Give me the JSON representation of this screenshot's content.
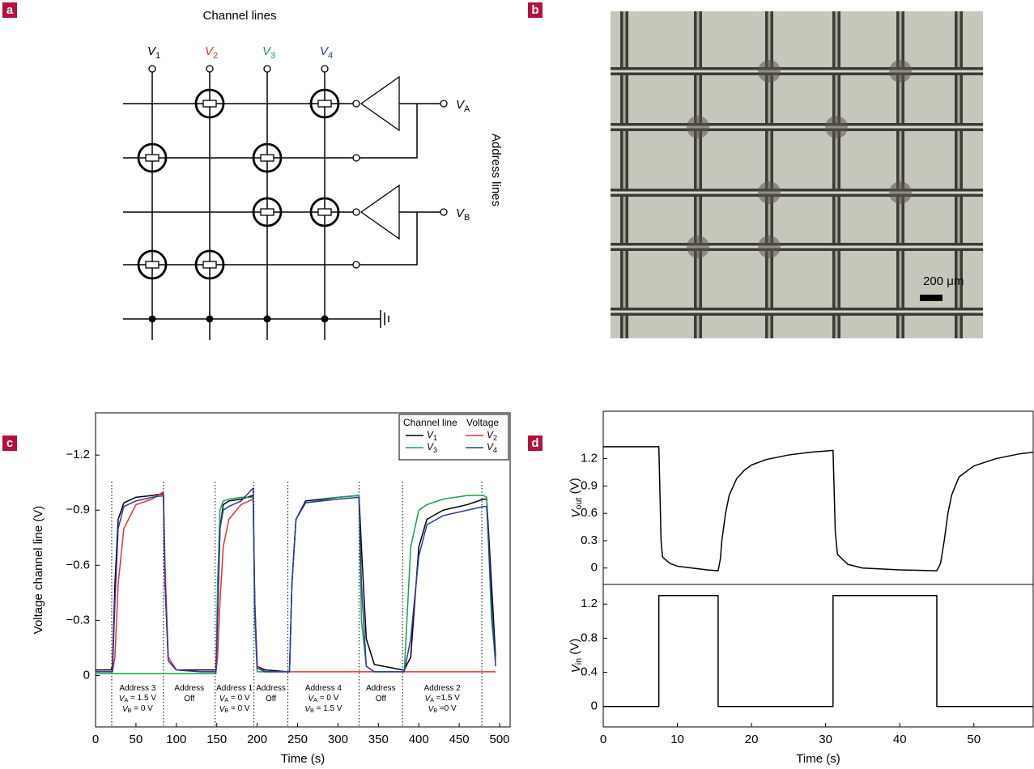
{
  "panel_labels": [
    "a",
    "b",
    "c",
    "d"
  ],
  "circuit": {
    "title": "Channel lines",
    "channels": [
      {
        "main": "V",
        "sub": "1",
        "color": "#000000"
      },
      {
        "main": "V",
        "sub": "2",
        "color": "#e8312f"
      },
      {
        "main": "V",
        "sub": "3",
        "color": "#1aa04a"
      },
      {
        "main": "V",
        "sub": "4",
        "color": "#2b3a9e"
      }
    ],
    "outputs": [
      {
        "main": "V",
        "sub": "A"
      },
      {
        "main": "V",
        "sub": "B"
      }
    ],
    "address_label": "Address lines"
  },
  "photo": {
    "scale_bar": "200 μm"
  },
  "chart_data": [
    {
      "type": "line",
      "xlabel": "Time (s)",
      "ylabel": "Voltage channel line (V)",
      "xlim": [
        0,
        513
      ],
      "ylim": [
        0.28,
        -1.43
      ],
      "xticks": [
        0,
        50,
        100,
        150,
        200,
        250,
        300,
        350,
        400,
        450,
        500
      ],
      "yticks": [
        0,
        {
          "value": -0.3,
          "label": "−0.3"
        },
        {
          "value": -0.6,
          "label": "−0.6"
        },
        {
          "value": -0.9,
          "label": "−0.9"
        },
        {
          "value": -1.2,
          "label": "−1.2"
        }
      ],
      "legend_title": [
        "Channel line",
        "Voltage"
      ],
      "x": [
        0,
        19,
        21,
        24,
        28,
        35,
        50,
        70,
        84,
        86,
        90,
        100,
        130,
        149,
        151,
        154,
        158,
        165,
        180,
        195,
        197,
        200,
        210,
        238,
        240,
        243,
        248,
        260,
        300,
        326,
        329,
        335,
        345,
        380,
        382,
        390,
        400,
        410,
        430,
        460,
        480,
        484,
        490,
        495
      ],
      "series": [
        {
          "name": "V",
          "subscript": "1",
          "color": "#000000",
          "values": [
            -0.03,
            -0.03,
            -0.05,
            -0.5,
            -0.85,
            -0.94,
            -0.97,
            -0.98,
            -0.99,
            -0.5,
            -0.08,
            -0.03,
            -0.03,
            -0.03,
            -0.3,
            -0.8,
            -0.93,
            -0.95,
            -0.96,
            -0.98,
            -0.4,
            -0.05,
            -0.03,
            -0.02,
            -0.02,
            -0.5,
            -0.85,
            -0.95,
            -0.97,
            -0.98,
            -0.7,
            -0.2,
            -0.06,
            -0.03,
            -0.03,
            -0.1,
            -0.7,
            -0.85,
            -0.9,
            -0.93,
            -0.96,
            -0.96,
            -0.5,
            -0.1
          ]
        },
        {
          "name": "V",
          "subscript": "2",
          "color": "#e8312f",
          "values": [
            -0.02,
            -0.02,
            -0.02,
            -0.1,
            -0.5,
            -0.8,
            -0.93,
            -0.96,
            -1.0,
            -0.6,
            -0.1,
            -0.03,
            -0.02,
            -0.02,
            -0.1,
            -0.4,
            -0.7,
            -0.85,
            -0.93,
            -0.96,
            -0.4,
            -0.05,
            -0.02,
            -0.02,
            -0.02,
            -0.02,
            -0.02,
            -0.02,
            -0.02,
            -0.02,
            -0.02,
            -0.02,
            -0.02,
            -0.02,
            -0.02,
            -0.02,
            -0.02,
            -0.02,
            -0.02,
            -0.02,
            -0.02,
            -0.02,
            -0.02,
            -0.02
          ]
        },
        {
          "name": "V",
          "subscript": "3",
          "color": "#1aa04a",
          "values": [
            -0.01,
            -0.01,
            -0.01,
            -0.01,
            -0.01,
            -0.01,
            -0.01,
            -0.01,
            -0.01,
            -0.01,
            -0.01,
            -0.01,
            -0.01,
            -0.01,
            -0.5,
            -0.9,
            -0.95,
            -0.96,
            -0.97,
            -0.97,
            -0.3,
            -0.02,
            -0.02,
            -0.02,
            -0.02,
            -0.5,
            -0.85,
            -0.94,
            -0.97,
            -0.98,
            -0.3,
            -0.05,
            -0.02,
            -0.02,
            -0.02,
            -0.7,
            -0.9,
            -0.93,
            -0.96,
            -0.98,
            -0.98,
            -0.97,
            -0.3,
            -0.08
          ]
        },
        {
          "name": "V",
          "subscript": "4",
          "color": "#2b3a9e",
          "values": [
            -0.02,
            -0.02,
            -0.02,
            -0.4,
            -0.8,
            -0.92,
            -0.95,
            -0.97,
            -0.98,
            -0.5,
            -0.08,
            -0.03,
            -0.02,
            -0.02,
            -0.3,
            -0.8,
            -0.9,
            -0.92,
            -0.95,
            -1.02,
            -0.4,
            -0.04,
            -0.02,
            -0.02,
            -0.02,
            -0.5,
            -0.85,
            -0.94,
            -0.96,
            -0.97,
            -0.5,
            -0.05,
            -0.02,
            -0.02,
            -0.02,
            -0.2,
            -0.65,
            -0.82,
            -0.87,
            -0.9,
            -0.92,
            -0.92,
            -0.4,
            -0.05
          ]
        }
      ],
      "markers": [
        20,
        84,
        148,
        196,
        238,
        326,
        380,
        478
      ],
      "annotations": [
        [
          [
            "Address 3"
          ],
          [
            "V",
            "A",
            " = 1.5 V"
          ],
          [
            "V",
            "B",
            " = 0 V"
          ]
        ],
        [
          [
            "Address"
          ],
          [
            "Off"
          ]
        ],
        [
          [
            "Address 1"
          ],
          [
            "V",
            "A",
            " = 0 V"
          ],
          [
            "V",
            "B",
            " = 0 V"
          ]
        ],
        [
          [
            "Address"
          ],
          [
            "Off"
          ]
        ],
        [
          [
            "Address 4"
          ],
          [
            "V",
            "A",
            " = 0 V"
          ],
          [
            "V",
            "B",
            " = 1.5 V"
          ]
        ],
        [
          [
            "Address"
          ],
          [
            "Off"
          ]
        ],
        [
          [
            "Address 2"
          ],
          [
            "V",
            "A",
            " =1.5 V"
          ],
          [
            "V",
            "B",
            " =0 V"
          ]
        ]
      ]
    },
    {
      "type": "line",
      "ylabel": [
        "V",
        "out",
        " (V)"
      ],
      "xlim": [
        0,
        58
      ],
      "ylim": [
        -0.18,
        1.72
      ],
      "yticks": [
        0,
        0.3,
        0.6,
        0.9,
        1.2
      ],
      "x": [
        0,
        7.5,
        7.6,
        7.8,
        8,
        9,
        10,
        12,
        14,
        15.5,
        15.8,
        16,
        16.5,
        17,
        18,
        19,
        20,
        22,
        25,
        28,
        31,
        31.1,
        31.3,
        31.6,
        33,
        35,
        40,
        45,
        45.5,
        46,
        46.5,
        47,
        48,
        50,
        53,
        56,
        58
      ],
      "series": [
        {
          "color": "#000000",
          "values": [
            1.33,
            1.33,
            1.0,
            0.3,
            0.12,
            0.05,
            0.02,
            0.0,
            -0.02,
            -0.03,
            0.1,
            0.3,
            0.6,
            0.8,
            0.98,
            1.07,
            1.13,
            1.19,
            1.24,
            1.27,
            1.29,
            1.0,
            0.4,
            0.15,
            0.04,
            0.0,
            -0.02,
            -0.03,
            0.05,
            0.3,
            0.6,
            0.8,
            1.0,
            1.12,
            1.2,
            1.25,
            1.27
          ]
        }
      ]
    },
    {
      "type": "line",
      "xlabel": "Time (s)",
      "ylabel": [
        "V",
        "in",
        " (V)"
      ],
      "xlim": [
        0,
        58
      ],
      "ylim": [
        -0.24,
        1.43
      ],
      "xticks": [
        0,
        10,
        20,
        30,
        40,
        50
      ],
      "yticks": [
        0,
        0.4,
        0.8,
        1.2
      ],
      "x": [
        0,
        7.5,
        7.5,
        15.5,
        15.5,
        31,
        31,
        45,
        45,
        58
      ],
      "series": [
        {
          "color": "#000000",
          "values": [
            0,
            0,
            1.3,
            1.3,
            0,
            0,
            1.3,
            1.3,
            0,
            0
          ]
        }
      ]
    }
  ]
}
